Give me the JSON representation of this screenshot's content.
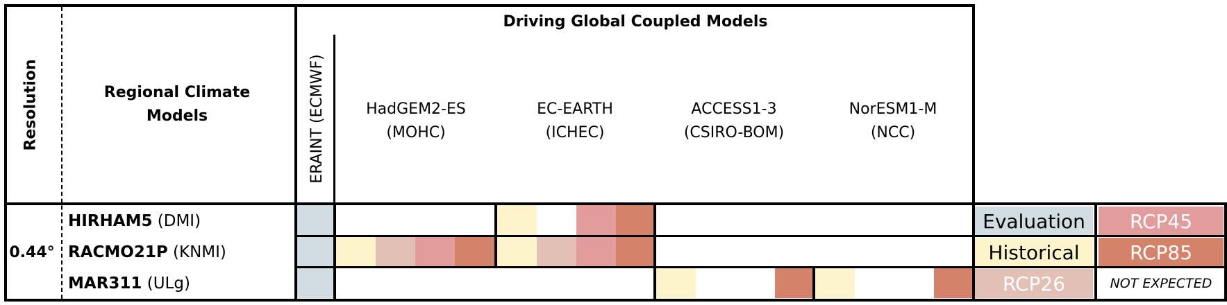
{
  "header": {
    "resolution_label": "Resolution",
    "rcm_label_line1": "Regional Climate",
    "rcm_label_line2": "Models",
    "driving_title": "Driving Global Coupled Models",
    "eraint_label": "ERAINT (ECMWF)",
    "gcms": [
      {
        "name": "HadGEM2-ES",
        "institute": "(MOHC)"
      },
      {
        "name": "EC-EARTH",
        "institute": "(ICHEC)"
      },
      {
        "name": "ACCESS1-3",
        "institute": "(CSIRO-BOM)"
      },
      {
        "name": "NorESM1-M",
        "institute": "(NCC)"
      }
    ]
  },
  "resolution_value": "0.44°",
  "rows": [
    {
      "model": "HIRHAM5",
      "institute": "(DMI)",
      "eraint": "Evaluation",
      "cells": [
        [
          "none",
          "none",
          "none",
          "none"
        ],
        [
          "Historical",
          "none",
          "RCP45",
          "RCP85"
        ],
        [
          "none",
          "none",
          "none",
          "none"
        ],
        [
          "none",
          "none",
          "none",
          "none"
        ]
      ]
    },
    {
      "model": "RACMO21P",
      "institute": "(KNMI)",
      "eraint": "Evaluation",
      "cells": [
        [
          "Historical",
          "RCP26",
          "RCP45",
          "RCP85"
        ],
        [
          "Historical",
          "RCP26",
          "RCP45",
          "RCP85"
        ],
        [
          "none",
          "none",
          "none",
          "none"
        ],
        [
          "none",
          "none",
          "none",
          "none"
        ]
      ]
    },
    {
      "model": "MAR311",
      "institute": "(ULg)",
      "eraint": "Evaluation",
      "cells": [
        [
          "none",
          "none",
          "none",
          "none"
        ],
        [
          "none",
          "none",
          "none",
          "none"
        ],
        [
          "Historical",
          "none",
          "none",
          "RCP85"
        ],
        [
          "Historical",
          "none",
          "none",
          "RCP85"
        ]
      ]
    }
  ],
  "legend": {
    "evaluation": "Evaluation",
    "rcp45": "RCP45",
    "historical": "Historical",
    "rcp85": "RCP85",
    "rcp26": "RCP26",
    "not_expected": "NOT EXPECTED"
  },
  "colors": {
    "Evaluation": "#d2dde2",
    "Historical": "#fdf4cc",
    "RCP26": "#e2c0b6",
    "RCP45": "#e39c9c",
    "RCP85": "#d4836a",
    "none": "#ffffff"
  }
}
